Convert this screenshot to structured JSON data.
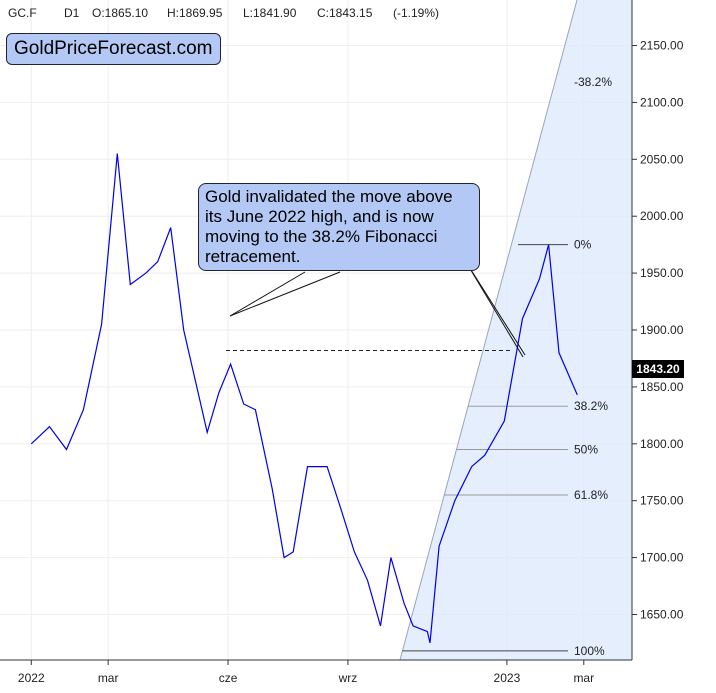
{
  "header": {
    "symbol": "GC.F",
    "timeframe": "D1",
    "open": "O:1865.10",
    "high": "H:1869.95",
    "low": "L:1841.90",
    "close": "C:1843.15",
    "change": "(-1.19%)"
  },
  "brand": "GoldPriceForecast.com",
  "annotation": "Gold invalidated the move above its June 2022 high, and is now moving to the 38.2% Fibonacci retracement.",
  "last_price": "1843.20",
  "colors": {
    "price_line": "#0000ee",
    "fib_fill": "#dbe8fb",
    "callout_bg": "#b3c8f4"
  },
  "chart_data": {
    "type": "line",
    "title": "",
    "xlabel": "",
    "ylabel": "",
    "ylim": [
      1610,
      2190
    ],
    "yticks": [
      "2150.00",
      "2100.00",
      "2050.00",
      "2000.00",
      "1950.00",
      "1900.00",
      "1850.00",
      "1800.00",
      "1750.00",
      "1700.00",
      "1650.00"
    ],
    "xticks": [
      "2022",
      "mar",
      "cze",
      "wrz",
      "2023",
      "mar"
    ],
    "series": [
      {
        "x": [
          "2022-01-01",
          "2022-01-15",
          "2022-01-28",
          "2022-02-10",
          "2022-02-24",
          "2022-03-08",
          "2022-03-18",
          "2022-03-30",
          "2022-04-08",
          "2022-04-18",
          "2022-04-28",
          "2022-05-10",
          "2022-05-16",
          "2022-05-25",
          "2022-06-03",
          "2022-06-13",
          "2022-06-22",
          "2022-07-05",
          "2022-07-14",
          "2022-07-21",
          "2022-08-01",
          "2022-08-16",
          "2022-08-26",
          "2022-09-06",
          "2022-09-16",
          "2022-09-26",
          "2022-10-04",
          "2022-10-14",
          "2022-10-21",
          "2022-11-01",
          "2022-11-03",
          "2022-11-10",
          "2022-11-22",
          "2022-12-05",
          "2022-12-15",
          "2022-12-30",
          "2023-01-13",
          "2023-01-26",
          "2023-02-02",
          "2023-02-10",
          "2023-02-24"
        ],
        "values": [
          1800,
          1815,
          1795,
          1830,
          1905,
          2055,
          1940,
          1950,
          1960,
          1990,
          1900,
          1840,
          1810,
          1845,
          1870,
          1835,
          1830,
          1760,
          1700,
          1705,
          1780,
          1780,
          1745,
          1705,
          1680,
          1640,
          1700,
          1660,
          1640,
          1635,
          1625,
          1710,
          1750,
          1780,
          1790,
          1820,
          1910,
          1945,
          1975,
          1880,
          1843
        ]
      }
    ],
    "fibonacci": {
      "levels": [
        {
          "label": "-38.2%",
          "value": 2118
        },
        {
          "label": "0%",
          "value": 1975
        },
        {
          "label": "38.2%",
          "value": 1833
        },
        {
          "label": "50%",
          "value": 1795
        },
        {
          "label": "61.8%",
          "value": 1755
        },
        {
          "label": "100%",
          "value": 1618
        }
      ]
    },
    "june_2022_high": 1882,
    "grid": true
  }
}
